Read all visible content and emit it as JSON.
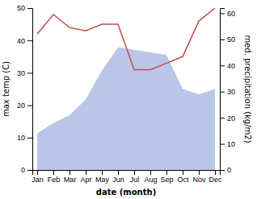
{
  "chart_data": {
    "type": "line",
    "categories": [
      "Jan",
      "Feb",
      "Mar",
      "Apr",
      "May",
      "Jun",
      "Jul",
      "Aug",
      "Sep",
      "Oct",
      "Nov",
      "Dec"
    ],
    "xlabel": "date (month)",
    "ylabel": "max temp (C)",
    "y2label": "med. precipitation (kg/m2)",
    "ylim": [
      0,
      50
    ],
    "yticks": [
      0,
      10,
      20,
      30,
      40,
      50
    ],
    "y2lim": [
      0,
      62
    ],
    "y2ticks": [
      0,
      10,
      20,
      30,
      40,
      50,
      60
    ],
    "series": [
      {
        "type": "area",
        "axis": "y2",
        "color": "#bbc5e8",
        "values": [
          14,
          18,
          21,
          27,
          38,
          47,
          46,
          45,
          44,
          31,
          29,
          31
        ]
      },
      {
        "type": "line",
        "color": "#c0504d",
        "values": [
          42,
          48,
          44,
          43,
          45,
          45,
          31,
          31,
          33,
          35,
          46,
          50
        ]
      }
    ]
  }
}
